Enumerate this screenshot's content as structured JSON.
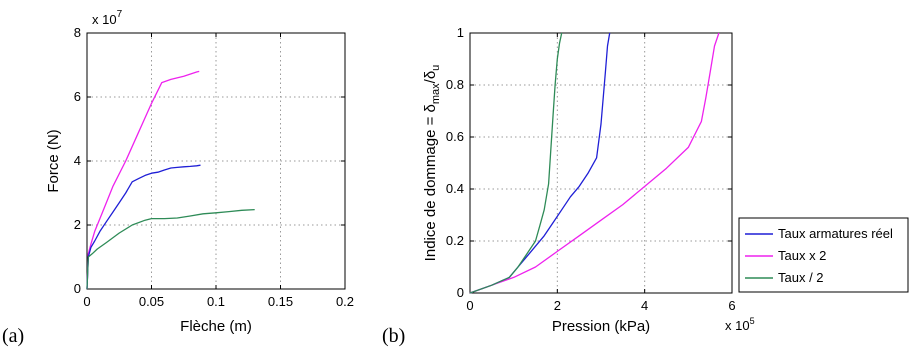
{
  "colors": {
    "blue": "#1f1fd6",
    "magenta": "#ee22ee",
    "green": "#2e8b57"
  },
  "chart_data": [
    {
      "type": "line",
      "panel_label": "(a)",
      "xlabel": "Flèche (m)",
      "ylabel": "Force (N)",
      "y_multiplier": "x 10",
      "y_multiplier_exp": "7",
      "xlim": [
        0,
        0.2
      ],
      "ylim": [
        0,
        8
      ],
      "xticks": [
        "0",
        "0.05",
        "0.1",
        "0.15",
        "0.2"
      ],
      "xtick_values": [
        0,
        0.05,
        0.1,
        0.15,
        0.2
      ],
      "yticks": [
        "0",
        "2",
        "4",
        "6",
        "8"
      ],
      "ytick_values": [
        0,
        2,
        4,
        6,
        8
      ],
      "grid": true,
      "series": [
        {
          "color": "#ee22ee",
          "x": [
            0,
            0.001,
            0.003,
            0.006,
            0.012,
            0.02,
            0.03,
            0.04,
            0.05,
            0.058,
            0.065,
            0.075,
            0.085,
            0.087
          ],
          "y": [
            0,
            1.1,
            1.4,
            1.8,
            2.4,
            3.2,
            4.0,
            4.9,
            5.8,
            6.45,
            6.55,
            6.65,
            6.78,
            6.8
          ]
        },
        {
          "color": "#1f1fd6",
          "x": [
            0,
            0.001,
            0.003,
            0.006,
            0.01,
            0.015,
            0.02,
            0.025,
            0.03,
            0.035,
            0.04,
            0.045,
            0.05,
            0.055,
            0.06,
            0.065,
            0.07,
            0.075,
            0.08,
            0.085,
            0.088
          ],
          "y": [
            0,
            1.0,
            1.3,
            1.5,
            1.8,
            2.1,
            2.4,
            2.7,
            3.0,
            3.35,
            3.45,
            3.55,
            3.62,
            3.65,
            3.72,
            3.78,
            3.8,
            3.82,
            3.83,
            3.85,
            3.87
          ]
        },
        {
          "color": "#2e8b57",
          "x": [
            0,
            0.001,
            0.004,
            0.008,
            0.015,
            0.025,
            0.035,
            0.045,
            0.05,
            0.06,
            0.07,
            0.08,
            0.09,
            0.1,
            0.11,
            0.12,
            0.13
          ],
          "y": [
            0,
            1.0,
            1.1,
            1.25,
            1.45,
            1.75,
            2.0,
            2.15,
            2.2,
            2.2,
            2.22,
            2.28,
            2.35,
            2.38,
            2.42,
            2.46,
            2.48
          ]
        }
      ]
    },
    {
      "type": "line",
      "panel_label": "(b)",
      "xlabel": "Pression (kPa)",
      "ylabel": "Indice de dommage = δ",
      "ylabel_sub1": "max",
      "ylabel_mid": "/δ",
      "ylabel_sub2": "u",
      "x_multiplier": "x 10",
      "x_multiplier_exp": "5",
      "xlim": [
        0,
        6
      ],
      "ylim": [
        0,
        1
      ],
      "xticks": [
        "0",
        "2",
        "4",
        "6"
      ],
      "xtick_values": [
        0,
        2,
        4,
        6
      ],
      "yticks": [
        "0",
        "0.2",
        "0.4",
        "0.6",
        "0.8",
        "1"
      ],
      "ytick_values": [
        0,
        0.2,
        0.4,
        0.6,
        0.8,
        1
      ],
      "grid": true,
      "legend": "outside-right",
      "series": [
        {
          "name": "Taux armatures réel",
          "color": "#1f1fd6",
          "x": [
            0,
            0.5,
            0.9,
            1.1,
            1.3,
            1.5,
            1.7,
            1.9,
            2.1,
            2.3,
            2.5,
            2.7,
            2.9,
            3.0,
            3.1,
            3.15,
            3.2
          ],
          "y": [
            0,
            0.03,
            0.06,
            0.1,
            0.14,
            0.18,
            0.22,
            0.27,
            0.32,
            0.37,
            0.41,
            0.46,
            0.52,
            0.65,
            0.85,
            0.95,
            1.0
          ]
        },
        {
          "name": "Taux x 2",
          "color": "#ee22ee",
          "x": [
            0,
            0.5,
            1.0,
            1.5,
            2.0,
            2.5,
            3.0,
            3.5,
            4.0,
            4.5,
            5.0,
            5.3,
            5.4,
            5.5,
            5.6,
            5.7
          ],
          "y": [
            0,
            0.03,
            0.06,
            0.1,
            0.16,
            0.22,
            0.28,
            0.34,
            0.41,
            0.48,
            0.56,
            0.66,
            0.75,
            0.85,
            0.95,
            1.0
          ]
        },
        {
          "name": "Taux / 2",
          "color": "#2e8b57",
          "x": [
            0,
            0.5,
            0.9,
            1.1,
            1.3,
            1.5,
            1.6,
            1.7,
            1.8,
            1.85,
            1.9,
            1.95,
            2.0,
            2.05,
            2.1
          ],
          "y": [
            0,
            0.03,
            0.06,
            0.1,
            0.15,
            0.2,
            0.26,
            0.32,
            0.42,
            0.55,
            0.68,
            0.8,
            0.9,
            0.96,
            1.0
          ]
        }
      ]
    }
  ]
}
